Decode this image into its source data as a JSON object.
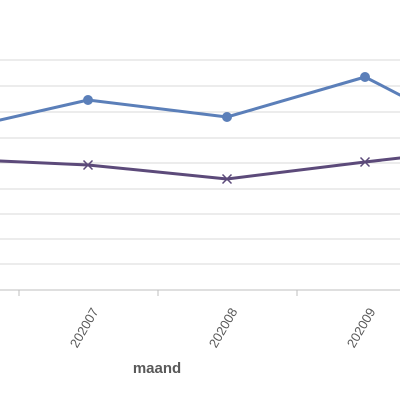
{
  "chart_data": {
    "type": "line",
    "categories": [
      "202007",
      "202008",
      "202009"
    ],
    "xlabel": "maand",
    "ylabel": "",
    "title": "",
    "legend": "none",
    "grid": true,
    "series": [
      {
        "color": "#5b7fb9",
        "marker": "circle",
        "values": [
          100,
          117,
          77
        ]
      },
      {
        "color": "#5c4a7a",
        "marker": "x",
        "values": [
          165,
          179,
          162
        ]
      }
    ],
    "visible_partial_values": {
      "series_0_left_edge": 120,
      "series_0_right_edge": 95,
      "series_1_left_edge": 161,
      "series_1_right_edge": 158
    },
    "ylim": [
      290,
      35
    ],
    "y_gridlines": [
      60,
      86,
      112,
      138,
      163,
      189,
      214,
      239,
      264,
      289
    ]
  },
  "colors": {
    "grid": "#d9d9d9",
    "axis": "#bfbfbf",
    "text": "#595959"
  }
}
